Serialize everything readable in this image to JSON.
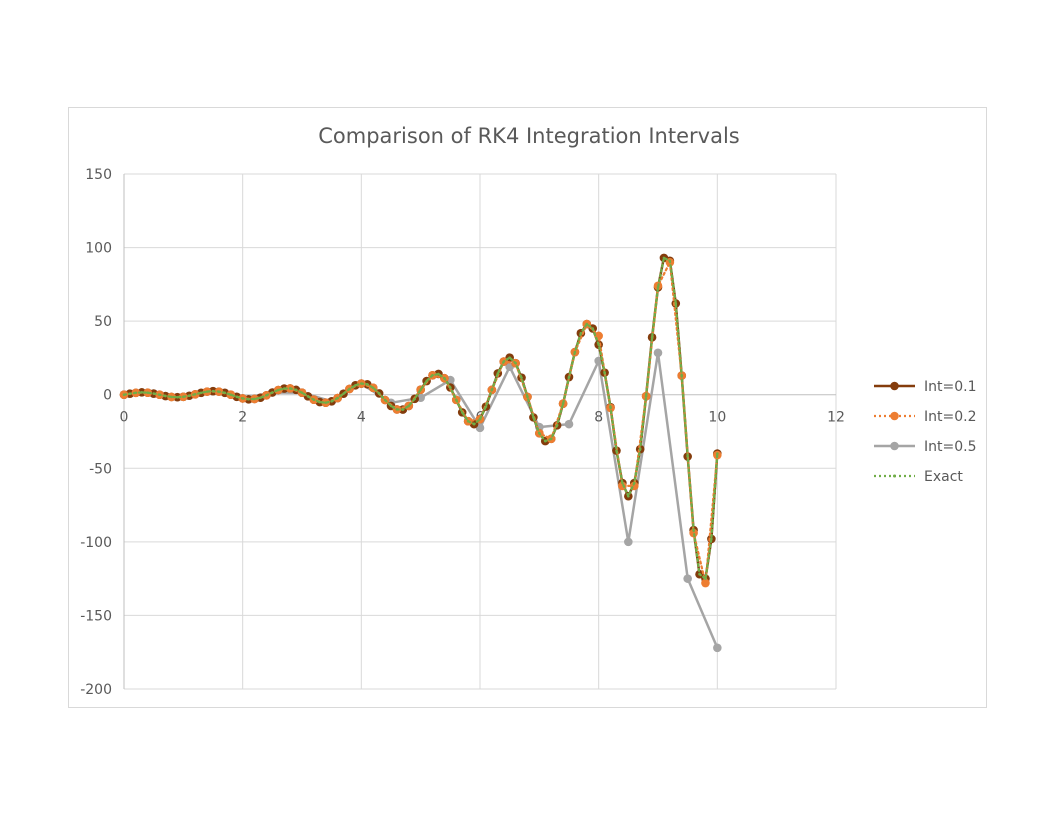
{
  "chart_data": {
    "type": "scatter",
    "title": "Comparison of RK4 Integration Intervals",
    "xlim": [
      0,
      12
    ],
    "ylim": [
      -200,
      150
    ],
    "x_ticks": [
      0,
      2,
      4,
      6,
      8,
      10,
      12
    ],
    "y_ticks": [
      150,
      100,
      50,
      0,
      -50,
      -100,
      -150,
      -200
    ],
    "grid": true,
    "legend_position": "right",
    "series": [
      {
        "name": "Int=0.1",
        "color": "#843c0c",
        "line_style": "solid",
        "marker": "circle",
        "x": [
          0,
          0.1,
          0.2,
          0.3,
          0.4,
          0.5,
          0.6,
          0.7,
          0.8,
          0.9,
          1.0,
          1.1,
          1.2,
          1.3,
          1.4,
          1.5,
          1.6,
          1.7,
          1.8,
          1.9,
          2.0,
          2.1,
          2.2,
          2.3,
          2.4,
          2.5,
          2.6,
          2.7,
          2.8,
          2.9,
          3.0,
          3.1,
          3.2,
          3.3,
          3.4,
          3.5,
          3.6,
          3.7,
          3.8,
          3.9,
          4.0,
          4.1,
          4.2,
          4.3,
          4.4,
          4.5,
          4.6,
          4.7,
          4.8,
          4.9,
          5.0,
          5.1,
          5.2,
          5.3,
          5.4,
          5.5,
          5.6,
          5.7,
          5.8,
          5.9,
          6.0,
          6.1,
          6.2,
          6.3,
          6.4,
          6.5,
          6.6,
          6.7,
          6.8,
          6.9,
          7.0,
          7.1,
          7.2,
          7.3,
          7.4,
          7.5,
          7.6,
          7.7,
          7.8,
          7.9,
          8.0,
          8.1,
          8.2,
          8.3,
          8.4,
          8.5,
          8.6,
          8.7,
          8.8,
          8.9,
          9.0,
          9.1,
          9.2,
          9.3,
          9.4,
          9.5,
          9.6,
          9.7,
          9.8,
          9.9,
          10.0
        ],
        "y": [
          0,
          0.7,
          1.3,
          1.6,
          1.4,
          0.8,
          0,
          -0.9,
          -1.5,
          -1.7,
          -1.4,
          -0.7,
          0.3,
          1.3,
          2.1,
          2.4,
          2.1,
          1.3,
          0,
          -1.4,
          -2.5,
          -3.1,
          -2.9,
          -2.0,
          -0.4,
          1.5,
          3.2,
          4.2,
          4.3,
          3.3,
          1.4,
          -1.1,
          -3.4,
          -5.0,
          -5.4,
          -4.5,
          -2.3,
          0.7,
          3.9,
          6.4,
          7.6,
          7.1,
          4.7,
          0.9,
          -3.6,
          -7.6,
          -10.0,
          -10.1,
          -7.6,
          -2.8,
          3.4,
          9.3,
          13.2,
          14.1,
          11.2,
          4.9,
          -3.5,
          -12.0,
          -18.0,
          -20.0,
          -16.6,
          -8.1,
          3.3,
          14.5,
          22.5,
          25.2,
          21.4,
          11.6,
          -1.5,
          -15.4,
          -26.2,
          -31.5,
          -30.0,
          -20.8,
          -6.1,
          12.0,
          29.0,
          41.8,
          48.0,
          45.0,
          34.0,
          15.0,
          -8.5,
          -38.0,
          -60.0,
          -69.0,
          -60.0,
          -37.0,
          -1.0,
          39.0,
          73.0,
          93.0,
          91.0,
          62.0,
          13.0,
          -42.0,
          -92.0,
          -122.0,
          -125.0,
          -98.0,
          -40.0
        ]
      },
      {
        "name": "Int=0.2",
        "color": "#ed7d31",
        "line_style": "dotted",
        "marker": "circle",
        "x": [
          0,
          0.2,
          0.4,
          0.6,
          0.8,
          1.0,
          1.2,
          1.4,
          1.6,
          1.8,
          2.0,
          2.2,
          2.4,
          2.6,
          2.8,
          3.0,
          3.2,
          3.4,
          3.6,
          3.8,
          4.0,
          4.2,
          4.4,
          4.6,
          4.8,
          5.0,
          5.2,
          5.4,
          5.6,
          5.8,
          6.0,
          6.2,
          6.4,
          6.6,
          6.8,
          7.0,
          7.2,
          7.4,
          7.6,
          7.8,
          8.0,
          8.2,
          8.4,
          8.6,
          8.8,
          9.0,
          9.2,
          9.4,
          9.6,
          9.8,
          10.0
        ],
        "y": [
          0,
          1.3,
          1.4,
          0,
          -1.5,
          -1.4,
          0.3,
          2.1,
          2.1,
          0,
          -2.5,
          -2.9,
          -0.4,
          3.2,
          4.3,
          1.4,
          -3.4,
          -5.4,
          -2.3,
          3.9,
          7.6,
          4.7,
          -3.6,
          -10.0,
          -7.6,
          3.4,
          13.2,
          11.2,
          -3.5,
          -18.0,
          -16.6,
          3.3,
          22.5,
          21.4,
          -1.5,
          -26.2,
          -30.0,
          -6.1,
          29.0,
          48.0,
          40.0,
          -9.0,
          -62.0,
          -62.0,
          -1.0,
          74.0,
          90.0,
          13.0,
          -94.0,
          -128.0,
          -41.0
        ]
      },
      {
        "name": "Int=0.5",
        "color": "#a5a5a5",
        "line_style": "solid",
        "marker": "circle",
        "x": [
          0,
          0.5,
          1.0,
          1.5,
          2.0,
          2.5,
          3.0,
          3.5,
          4.0,
          4.5,
          5.0,
          5.5,
          6.0,
          6.5,
          7.0,
          7.5,
          8.0,
          8.5,
          9.0,
          9.5,
          10.0
        ],
        "y": [
          0,
          0.7,
          -1.4,
          2.4,
          -2.5,
          1.5,
          1.4,
          -4.5,
          7.5,
          -5.5,
          -2.0,
          10.0,
          -22.5,
          19.0,
          -22.0,
          -20.0,
          23.0,
          -100.0,
          28.5,
          -125.0,
          -172.0
        ]
      },
      {
        "name": "Exact",
        "color": "#70ad47",
        "line_style": "dotted",
        "marker": "none",
        "x": [
          0,
          0.1,
          0.2,
          0.3,
          0.4,
          0.5,
          0.6,
          0.7,
          0.8,
          0.9,
          1.0,
          1.1,
          1.2,
          1.3,
          1.4,
          1.5,
          1.6,
          1.7,
          1.8,
          1.9,
          2.0,
          2.1,
          2.2,
          2.3,
          2.4,
          2.5,
          2.6,
          2.7,
          2.8,
          2.9,
          3.0,
          3.1,
          3.2,
          3.3,
          3.4,
          3.5,
          3.6,
          3.7,
          3.8,
          3.9,
          4.0,
          4.1,
          4.2,
          4.3,
          4.4,
          4.5,
          4.6,
          4.7,
          4.8,
          4.9,
          5.0,
          5.1,
          5.2,
          5.3,
          5.4,
          5.5,
          5.6,
          5.7,
          5.8,
          5.9,
          6.0,
          6.1,
          6.2,
          6.3,
          6.4,
          6.5,
          6.6,
          6.7,
          6.8,
          6.9,
          7.0,
          7.1,
          7.2,
          7.3,
          7.4,
          7.5,
          7.6,
          7.7,
          7.8,
          7.9,
          8.0,
          8.1,
          8.2,
          8.3,
          8.4,
          8.5,
          8.6,
          8.7,
          8.8,
          8.9,
          9.0,
          9.1,
          9.2,
          9.3,
          9.4,
          9.5,
          9.6,
          9.7,
          9.8,
          9.9,
          10.0
        ],
        "y": [
          0,
          0.7,
          1.3,
          1.6,
          1.4,
          0.8,
          0,
          -0.9,
          -1.5,
          -1.7,
          -1.4,
          -0.7,
          0.3,
          1.3,
          2.1,
          2.4,
          2.1,
          1.3,
          0,
          -1.4,
          -2.5,
          -3.1,
          -2.9,
          -2.0,
          -0.4,
          1.5,
          3.2,
          4.2,
          4.3,
          3.3,
          1.4,
          -1.1,
          -3.4,
          -5.0,
          -5.4,
          -4.5,
          -2.3,
          0.7,
          3.9,
          6.4,
          7.6,
          7.1,
          4.7,
          0.9,
          -3.6,
          -7.6,
          -10.0,
          -10.1,
          -7.6,
          -2.8,
          3.4,
          9.3,
          13.2,
          14.1,
          11.2,
          4.9,
          -3.5,
          -12.0,
          -18.0,
          -20.0,
          -16.6,
          -8.1,
          3.3,
          14.5,
          22.5,
          25.2,
          21.4,
          11.6,
          -1.5,
          -15.4,
          -26.2,
          -31.5,
          -30.0,
          -20.8,
          -6.1,
          12.0,
          29.0,
          41.8,
          48.0,
          45.0,
          34.0,
          15.0,
          -8.5,
          -38.0,
          -60.0,
          -69.0,
          -60.0,
          -37.0,
          -1.0,
          39.0,
          73.0,
          93.0,
          91.0,
          62.0,
          13.0,
          -42.0,
          -92.0,
          -122.0,
          -125.0,
          -98.0,
          -40.0
        ]
      }
    ]
  }
}
